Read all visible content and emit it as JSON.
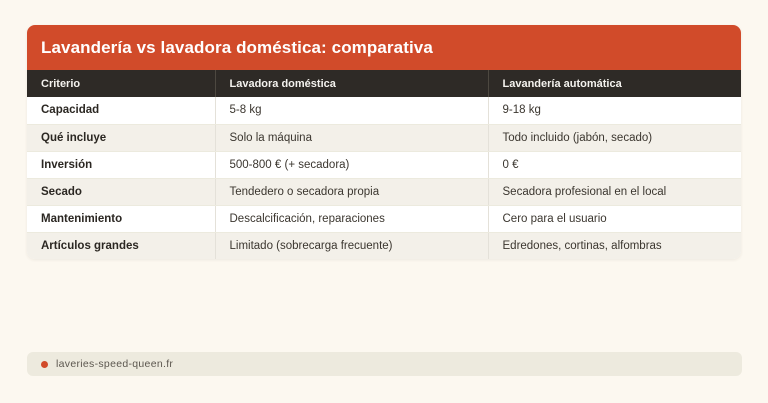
{
  "chart_data": {
    "type": "table",
    "title": "Lavandería vs lavadora doméstica: comparativa",
    "columns": [
      "Criterio",
      "Lavadora doméstica",
      "Lavandería automática"
    ],
    "rows": [
      [
        "Capacidad",
        "5-8 kg",
        "9-18 kg"
      ],
      [
        "Qué incluye",
        "Solo la máquina",
        "Todo incluido (jabón, secado)"
      ],
      [
        "Inversión",
        "500-800 € (+ secadora)",
        "0 €"
      ],
      [
        "Secado",
        "Tendedero o secadora propia",
        "Secadora profesional en el local"
      ],
      [
        "Mantenimiento",
        "Descalcificación, reparaciones",
        "Cero para el usuario"
      ],
      [
        "Artículos grandes",
        "Limitado (sobrecarga frecuente)",
        "Edredones, cortinas, alfombras"
      ]
    ],
    "layout": {
      "striped_rows": true,
      "header_style": "dark-band",
      "title_style": "accent-band"
    }
  },
  "footer": {
    "source": "laveries-speed-queen.fr"
  },
  "colors": {
    "accent": "#d14b2a",
    "table_header_bg": "#2e2a26",
    "page_bg": "#fcf8f0",
    "stripe_bg": "#f3f0e9",
    "footer_bg": "#edeade"
  }
}
